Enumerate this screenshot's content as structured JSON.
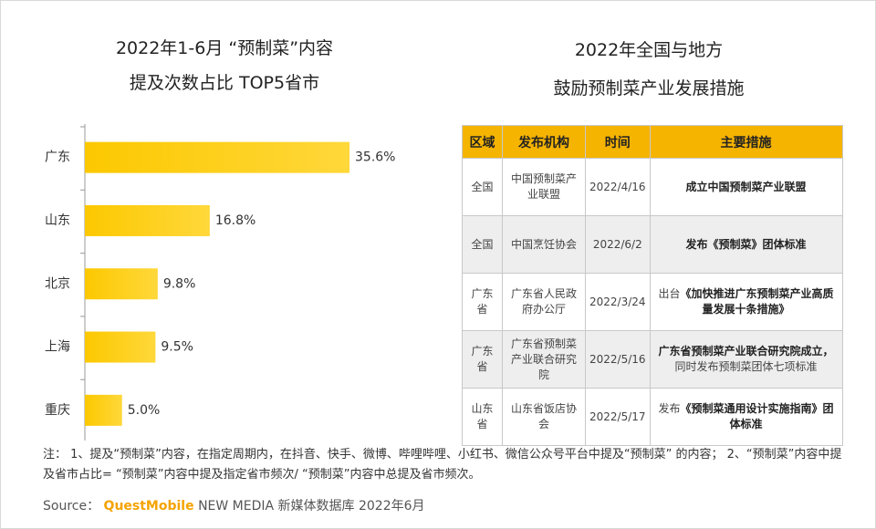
{
  "chart_data": {
    "type": "hbar",
    "title": [
      "2022年1-6月 “预制菜”内容",
      "提及次数占比 TOP5省市"
    ],
    "categories": [
      "广东",
      "山东",
      "北京",
      "上海",
      "重庆"
    ],
    "values": [
      35.6,
      16.8,
      9.8,
      9.5,
      5.0
    ],
    "value_labels": [
      "35.6%",
      "16.8%",
      "9.8%",
      "9.5%",
      "5.0%"
    ],
    "color": "#fcc800"
  },
  "table": {
    "title": [
      "2022年全国与地方",
      "鼓励预制菜产业发展措施"
    ],
    "header": [
      "区域",
      "发布机构",
      "时间",
      "主要措施"
    ],
    "rows": [
      [
        "全国",
        "中国预制菜产业联盟",
        "2022/4/16",
        [
          {
            "text": "成立中国预制菜产业联盟",
            "bold": true
          }
        ]
      ],
      [
        "全国",
        "中国烹饪协会",
        "2022/6/2",
        [
          {
            "text": "发布《预制菜》团体标准",
            "bold": true
          }
        ]
      ],
      [
        "广东省",
        "广东省人民政府办公厅",
        "2022/3/24",
        [
          {
            "text": "出台",
            "bold": false
          },
          {
            "text": "《加快推进广东预制菜产业高质量发展十条措施》",
            "bold": true
          }
        ]
      ],
      [
        "广东省",
        "广东省预制菜产业联合研究院",
        "2022/5/16",
        [
          {
            "text": "广东省预制菜产业联合研究院成立，",
            "bold": true
          },
          {
            "text": "同时发布预制菜团体七项标准",
            "bold": false
          }
        ]
      ],
      [
        "山东省",
        "山东省饭店协会",
        "2022/5/17",
        [
          {
            "text": "发布",
            "bold": false
          },
          {
            "text": "《预制菜通用设计实施指南》团体标准",
            "bold": true
          }
        ]
      ]
    ]
  },
  "note": "注： 1、提及“预制菜”内容，在指定周期内，在抖音、快手、微博、哔哩哔哩、小红书、微信公众号平台中提及“预制菜” 的内容； 2、“预制菜”内容中提及省市占比= “预制菜”内容中提及指定省市频次/ “预制菜”内容中总提及省市频次。",
  "source": [
    "Source：",
    "QuestMobile",
    "NEW MEDIA 新媒体数据库 2022年6月"
  ]
}
